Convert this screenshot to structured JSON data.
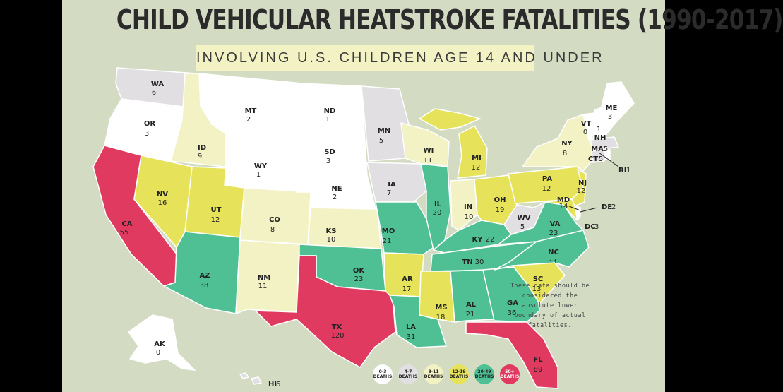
{
  "title": "CHILD VEHICULAR HEATSTROKE FATALITIES (1990-2017)",
  "subtitle": "INVOLVING U.S. CHILDREN AGE 14 AND UNDER",
  "note": "These data should be considered the absolute lower boundary of actual fatalities.",
  "colors": {
    "background": "#d3dcc3",
    "deaths_0_3": "#ffffff",
    "deaths_4_7": "#e2dfe2",
    "deaths_8_11": "#f2f2c4",
    "deaths_12_19": "#e6e35a",
    "deaths_20_49": "#4fbf94",
    "deaths_50_plus": "#e03a60"
  },
  "legend": [
    {
      "range": "0-3",
      "unit": "DEATHS",
      "color": "#ffffff"
    },
    {
      "range": "4-7",
      "unit": "DEATHS",
      "color": "#e2dfe2"
    },
    {
      "range": "8-11",
      "unit": "DEATHS",
      "color": "#f2f2c4"
    },
    {
      "range": "12-19",
      "unit": "DEATHS",
      "color": "#e6e35a"
    },
    {
      "range": "20-49",
      "unit": "DEATHS",
      "color": "#4fbf94"
    },
    {
      "range": "50+",
      "unit": "DEATHS",
      "color": "#e03a60"
    }
  ],
  "states": {
    "WA": {
      "abbr": "WA",
      "deaths": "6"
    },
    "OR": {
      "abbr": "OR",
      "deaths": "3"
    },
    "CA": {
      "abbr": "CA",
      "deaths": "55"
    },
    "ID": {
      "abbr": "ID",
      "deaths": "9"
    },
    "NV": {
      "abbr": "NV",
      "deaths": "16"
    },
    "MT": {
      "abbr": "MT",
      "deaths": "2"
    },
    "WY": {
      "abbr": "WY",
      "deaths": "1"
    },
    "UT": {
      "abbr": "UT",
      "deaths": "12"
    },
    "AZ": {
      "abbr": "AZ",
      "deaths": "38"
    },
    "CO": {
      "abbr": "CO",
      "deaths": "8"
    },
    "NM": {
      "abbr": "NM",
      "deaths": "11"
    },
    "ND": {
      "abbr": "ND",
      "deaths": "1"
    },
    "SD": {
      "abbr": "SD",
      "deaths": "3"
    },
    "NE": {
      "abbr": "NE",
      "deaths": "2"
    },
    "KS": {
      "abbr": "KS",
      "deaths": "10"
    },
    "OK": {
      "abbr": "OK",
      "deaths": "23"
    },
    "TX": {
      "abbr": "TX",
      "deaths": "120"
    },
    "MN": {
      "abbr": "MN",
      "deaths": "5"
    },
    "IA": {
      "abbr": "IA",
      "deaths": "7"
    },
    "MO": {
      "abbr": "MO",
      "deaths": "21"
    },
    "AR": {
      "abbr": "AR",
      "deaths": "17"
    },
    "LA": {
      "abbr": "LA",
      "deaths": "31"
    },
    "WI": {
      "abbr": "WI",
      "deaths": "11"
    },
    "IL": {
      "abbr": "IL",
      "deaths": "20"
    },
    "MI": {
      "abbr": "MI",
      "deaths": "12"
    },
    "IN": {
      "abbr": "IN",
      "deaths": "10"
    },
    "OH": {
      "abbr": "OH",
      "deaths": "19"
    },
    "KY": {
      "abbr": "KY",
      "deaths": "22"
    },
    "TN": {
      "abbr": "TN",
      "deaths": "30"
    },
    "MS": {
      "abbr": "MS",
      "deaths": "18"
    },
    "AL": {
      "abbr": "AL",
      "deaths": "21"
    },
    "GA": {
      "abbr": "GA",
      "deaths": "36"
    },
    "FL": {
      "abbr": "FL",
      "deaths": "89"
    },
    "SC": {
      "abbr": "SC",
      "deaths": "13"
    },
    "NC": {
      "abbr": "NC",
      "deaths": "33"
    },
    "VA": {
      "abbr": "VA",
      "deaths": "23"
    },
    "WV": {
      "abbr": "WV",
      "deaths": "5"
    },
    "PA": {
      "abbr": "PA",
      "deaths": "12"
    },
    "NY": {
      "abbr": "NY",
      "deaths": "8"
    },
    "NJ": {
      "abbr": "NJ",
      "deaths": "12"
    },
    "MD": {
      "abbr": "MD",
      "deaths": "14"
    },
    "DE": {
      "abbr": "DE",
      "deaths": "2"
    },
    "DC": {
      "abbr": "DC",
      "deaths": "3"
    },
    "VT": {
      "abbr": "VT",
      "deaths": "0"
    },
    "NH": {
      "abbr": "NH",
      "deaths": "1"
    },
    "ME": {
      "abbr": "ME",
      "deaths": "3"
    },
    "MA": {
      "abbr": "MA",
      "deaths": "5"
    },
    "CT": {
      "abbr": "CT",
      "deaths": "5"
    },
    "RI": {
      "abbr": "RI",
      "deaths": "1"
    },
    "AK": {
      "abbr": "AK",
      "deaths": "0"
    },
    "HI": {
      "abbr": "HI",
      "deaths": "6"
    }
  }
}
